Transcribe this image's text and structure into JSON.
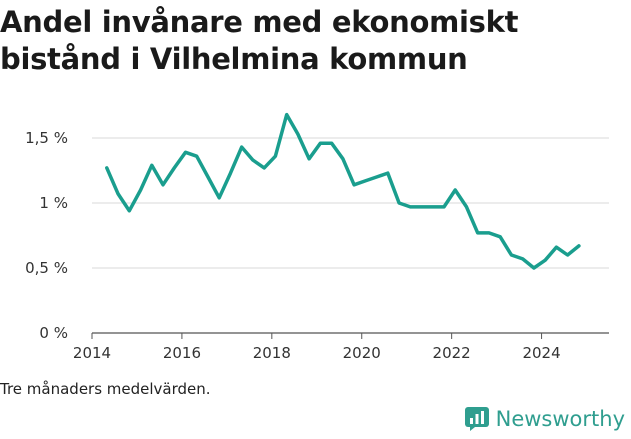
{
  "title": "Andel invånare med ekonomiskt bistånd i Vilhelmina kommun",
  "note": "Tre månaders medelvärden.",
  "brand": {
    "name": "Newsworthy"
  },
  "colors": {
    "line": "#1a9e8e",
    "grid": "#d9d9d9",
    "brand": "#2f9e8f"
  },
  "chart_data": {
    "type": "line",
    "title": "Andel invånare med ekonomiskt bistånd i Vilhelmina kommun",
    "xlabel": "",
    "ylabel": "",
    "xlim": [
      2014,
      2025.5
    ],
    "ylim": [
      0,
      1.6
    ],
    "xticks": [
      2014,
      2016,
      2018,
      2020,
      2022,
      2024
    ],
    "yticks": [
      0,
      0.5,
      1,
      1.5
    ],
    "ytick_labels": [
      "0 %",
      "0,5 %",
      "1 %",
      "1,5 %"
    ],
    "grid": true,
    "series": [
      {
        "x": [
          2014.33,
          2014.58,
          2014.83,
          2015.08,
          2015.33,
          2015.58,
          2015.83,
          2016.08,
          2016.33,
          2016.58,
          2016.83,
          2017.08,
          2017.33,
          2017.58,
          2017.83,
          2018.08,
          2018.33,
          2018.58,
          2018.83,
          2019.08,
          2019.33,
          2019.58,
          2019.83,
          2020.08,
          2020.33,
          2020.58,
          2020.83,
          2021.08,
          2021.33,
          2021.58,
          2021.83,
          2022.08,
          2022.33,
          2022.58,
          2022.83,
          2023.08,
          2023.33,
          2023.58,
          2023.83,
          2024.08,
          2024.33,
          2024.58,
          2024.83
        ],
        "values": [
          1.27,
          1.07,
          0.94,
          1.1,
          1.29,
          1.14,
          1.27,
          1.39,
          1.36,
          1.2,
          1.04,
          1.23,
          1.43,
          1.33,
          1.27,
          1.36,
          1.68,
          1.53,
          1.34,
          1.46,
          1.46,
          1.34,
          1.14,
          1.17,
          1.2,
          1.23,
          1.0,
          0.97,
          0.97,
          0.97,
          0.97,
          1.1,
          0.97,
          0.77,
          0.77,
          0.74,
          0.6,
          0.57,
          0.5,
          0.56,
          0.66,
          0.6,
          0.67
        ]
      }
    ]
  }
}
